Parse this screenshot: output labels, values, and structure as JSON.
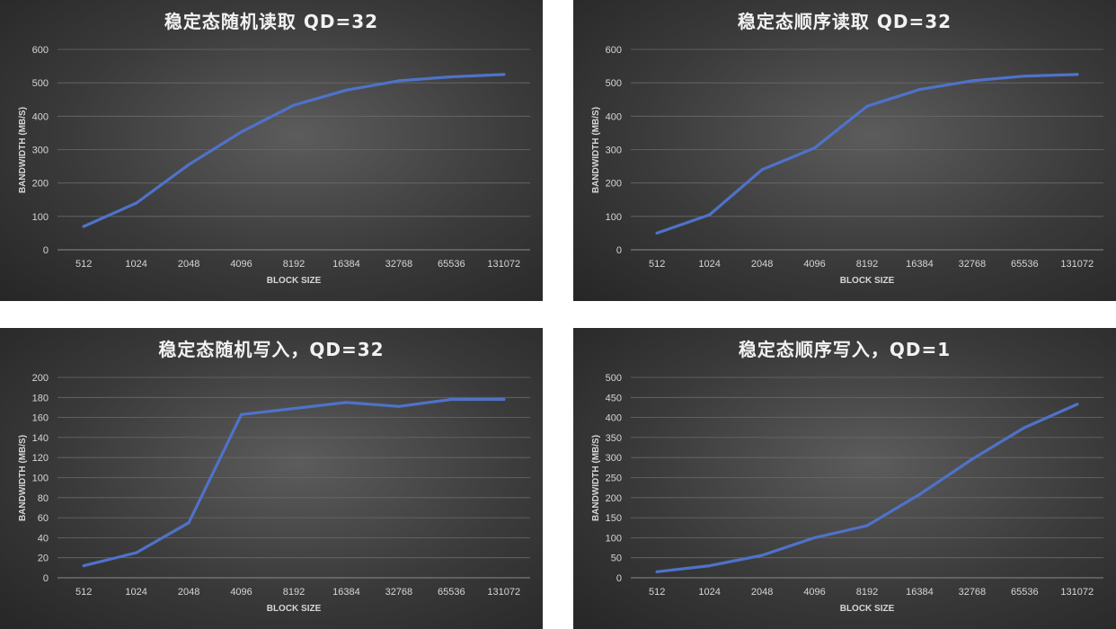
{
  "chart_data": [
    {
      "type": "line",
      "title": "稳定态随机读取 QD=32",
      "xlabel": "BLOCK SIZE",
      "ylabel": "BANDWIDTH (MB/S)",
      "categories": [
        "512",
        "1024",
        "2048",
        "4096",
        "8192",
        "16384",
        "32768",
        "65536",
        "131072"
      ],
      "values": [
        70,
        140,
        255,
        353,
        433,
        478,
        506,
        518,
        525
      ],
      "ylim": [
        0,
        600
      ],
      "yticks": [
        "0",
        "100",
        "200",
        "300",
        "400",
        "500",
        "600"
      ],
      "grid": true,
      "color": "#4f72c9"
    },
    {
      "type": "line",
      "title": "稳定态顺序读取 QD=32",
      "xlabel": "BLOCK SIZE",
      "ylabel": "BANDWIDTH (MB/S)",
      "categories": [
        "512",
        "1024",
        "2048",
        "4096",
        "8192",
        "16384",
        "32768",
        "65536",
        "131072"
      ],
      "values": [
        50,
        105,
        240,
        305,
        430,
        480,
        506,
        520,
        525
      ],
      "ylim": [
        0,
        600
      ],
      "yticks": [
        "0",
        "100",
        "200",
        "300",
        "400",
        "500",
        "600"
      ],
      "grid": true,
      "color": "#4f72c9"
    },
    {
      "type": "line",
      "title": "稳定态随机写入，QD=32",
      "xlabel": "BLOCK SIZE",
      "ylabel": "BANDWIDTH (MB/S)",
      "categories": [
        "512",
        "1024",
        "2048",
        "4096",
        "8192",
        "16384",
        "32768",
        "65536",
        "131072"
      ],
      "values": [
        12,
        25,
        55,
        163,
        169,
        175,
        171,
        178,
        178
      ],
      "ylim": [
        0,
        200
      ],
      "yticks": [
        "0",
        "20",
        "40",
        "60",
        "80",
        "100",
        "120",
        "140",
        "160",
        "180",
        "200"
      ],
      "grid": true,
      "color": "#4f72c9"
    },
    {
      "type": "line",
      "title": "稳定态顺序写入，QD=1",
      "xlabel": "BLOCK SIZE",
      "ylabel": "BANDWIDTH (MB/S)",
      "categories": [
        "512",
        "1024",
        "2048",
        "4096",
        "8192",
        "16384",
        "32768",
        "65536",
        "131072"
      ],
      "values": [
        15,
        30,
        56,
        100,
        130,
        208,
        296,
        375,
        433
      ],
      "ylim": [
        0,
        500
      ],
      "yticks": [
        "0",
        "50",
        "100",
        "150",
        "200",
        "250",
        "300",
        "350",
        "400",
        "450",
        "500"
      ],
      "grid": true,
      "color": "#4f72c9"
    }
  ]
}
